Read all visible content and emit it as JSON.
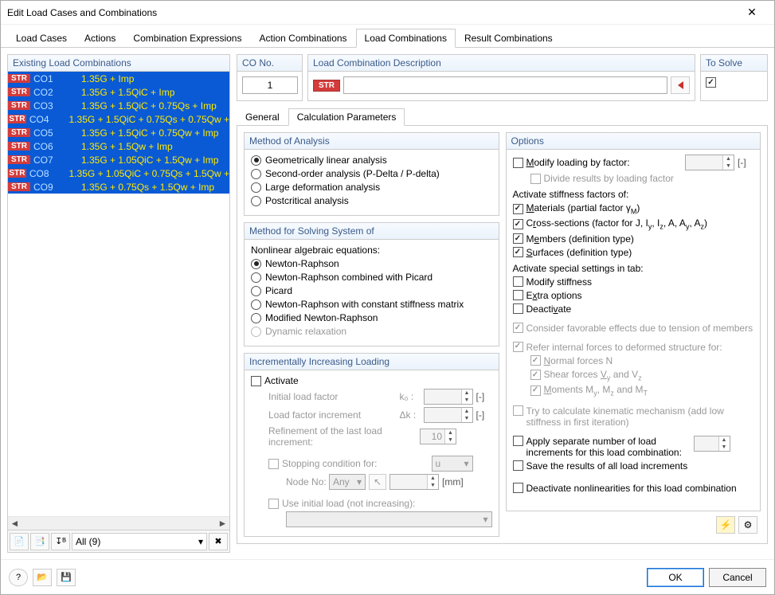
{
  "window": {
    "title": "Edit Load Cases and Combinations"
  },
  "mainTabs": [
    "Load Cases",
    "Actions",
    "Combination Expressions",
    "Action Combinations",
    "Load Combinations",
    "Result Combinations"
  ],
  "mainTabActive": 4,
  "leftPanel": {
    "title": "Existing Load Combinations",
    "rows": [
      {
        "tag": "STR",
        "co": "CO1",
        "desc": "1.35G + Imp"
      },
      {
        "tag": "STR",
        "co": "CO2",
        "desc": "1.35G + 1.5QiC + Imp"
      },
      {
        "tag": "STR",
        "co": "CO3",
        "desc": "1.35G + 1.5QiC + 0.75Qs + Imp"
      },
      {
        "tag": "STR",
        "co": "CO4",
        "desc": "1.35G + 1.5QiC + 0.75Qs + 0.75Qw +"
      },
      {
        "tag": "STR",
        "co": "CO5",
        "desc": "1.35G + 1.5QiC + 0.75Qw + Imp"
      },
      {
        "tag": "STR",
        "co": "CO6",
        "desc": "1.35G + 1.5Qw + Imp"
      },
      {
        "tag": "STR",
        "co": "CO7",
        "desc": "1.35G + 1.05QiC + 1.5Qw + Imp"
      },
      {
        "tag": "STR",
        "co": "CO8",
        "desc": "1.35G + 1.05QiC + 0.75Qs + 1.5Qw +"
      },
      {
        "tag": "STR",
        "co": "CO9",
        "desc": "1.35G + 0.75Qs + 1.5Qw + Imp"
      }
    ],
    "filter": "All (9)"
  },
  "topFields": {
    "coNo": {
      "label": "CO No.",
      "value": "1"
    },
    "lcDesc": {
      "label": "Load Combination Description",
      "badge": "STR",
      "value": ""
    },
    "toSolve": {
      "label": "To Solve",
      "checked": true
    }
  },
  "subTabs": [
    "General",
    "Calculation Parameters"
  ],
  "subTabActive": 1,
  "methodAnalysis": {
    "title": "Method of Analysis",
    "options": [
      "Geometrically linear analysis",
      "Second-order analysis (P-Delta / P-delta)",
      "Large deformation analysis",
      "Postcritical analysis"
    ],
    "selected": 0
  },
  "methodSolve": {
    "title": "Method for Solving System of",
    "subtitle": "Nonlinear algebraic equations:",
    "options": [
      "Newton-Raphson",
      "Newton-Raphson combined with Picard",
      "Picard",
      "Newton-Raphson with constant stiffness matrix",
      "Modified Newton-Raphson",
      "Dynamic relaxation"
    ],
    "selected": 0,
    "disabled": [
      5
    ]
  },
  "incremental": {
    "title": "Incrementally Increasing Loading",
    "activate": {
      "label": "Activate",
      "checked": false
    },
    "initialLoad": {
      "label": "Initial load factor",
      "sym": "k₀ :",
      "value": ""
    },
    "increment": {
      "label": "Load factor increment",
      "sym": "Δk :",
      "value": ""
    },
    "refine": {
      "label": "Refinement of the last load increment:",
      "value": "10"
    },
    "stopCond": {
      "label": "Stopping condition for:",
      "sel": "u"
    },
    "nodeNo": {
      "label": "Node No:",
      "sel": "Any",
      "value": "",
      "unit": "[mm]"
    },
    "useInitial": {
      "label": "Use initial load (not increasing):"
    }
  },
  "options": {
    "title": "Options",
    "modifyLoading": {
      "label": "Modify loading by factor:",
      "checked": false,
      "value": "",
      "unit": "[-]"
    },
    "divide": {
      "label": "Divide results by loading factor",
      "checked": false
    },
    "activateStiff": {
      "label": "Activate stiffness factors of:",
      "items": [
        {
          "label": "Materials (partial factor γM)",
          "checked": true,
          "u": "M",
          "under": true
        },
        {
          "label": "Cross-sections (factor for J, Iy, Iz, A, Ay, Az)",
          "checked": true,
          "u": "r",
          "under": true
        },
        {
          "label": "Members (definition type)",
          "checked": true,
          "u": "e",
          "under": true
        },
        {
          "label": "Surfaces (definition type)",
          "checked": true,
          "u": "S",
          "under": true
        }
      ]
    },
    "specialTab": {
      "label": "Activate special settings in tab:",
      "items": [
        {
          "label": "Modify stiffness",
          "checked": false
        },
        {
          "label": "Extra options",
          "checked": false
        },
        {
          "label": "Deactivate",
          "checked": false
        }
      ]
    },
    "consider": {
      "label": "Consider favorable effects due to tension of members",
      "checked": true,
      "disabled": true
    },
    "refer": {
      "label": "Refer internal forces to deformed structure for:",
      "checked": true,
      "disabled": true,
      "items": [
        {
          "label": "Normal forces N",
          "checked": true
        },
        {
          "label": "Shear forces Vy and Vz",
          "checked": true
        },
        {
          "label": "Moments My, Mz and MT",
          "checked": true
        }
      ]
    },
    "kinematic": {
      "label": "Try to calculate kinematic mechanism (add low stiffness in first iteration)",
      "checked": false,
      "disabled": true
    },
    "separate": {
      "label": "Apply separate number of load increments for this load combination:",
      "checked": false,
      "value": ""
    },
    "saveResults": {
      "label": "Save the results of all load increments",
      "checked": false
    },
    "deactivateNL": {
      "label": "Deactivate nonlinearities for this load combination",
      "checked": false
    }
  },
  "footer": {
    "ok": "OK",
    "cancel": "Cancel"
  }
}
